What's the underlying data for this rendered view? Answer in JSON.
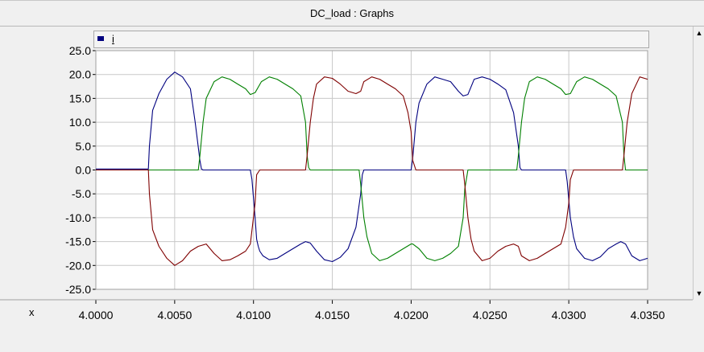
{
  "window": {
    "title": "DC_load : Graphs"
  },
  "legend": {
    "label": "i",
    "color": "#00007f"
  },
  "chart_data": {
    "type": "line",
    "title": "DC_load : Graphs",
    "xlabel": "x",
    "ylabel": "",
    "xlim": [
      4.0,
      4.035
    ],
    "ylim": [
      -25.0,
      25.0
    ],
    "xticks": [
      "4.0000",
      "4.0050",
      "4.0100",
      "4.0150",
      "4.0200",
      "4.0250",
      "4.0300",
      "4.0350"
    ],
    "yticks": [
      "25.0",
      "20.0",
      "15.0",
      "10.0",
      "5.0",
      "0.0",
      "-5.0",
      "-10.0",
      "-15.0",
      "-20.0",
      "-25.0"
    ],
    "grid": true,
    "legend_position": "top-left",
    "series": [
      {
        "color": "#00007f",
        "x": [
          4.0,
          4.00333,
          4.0034,
          4.0036,
          4.004,
          4.0045,
          4.005,
          4.0055,
          4.006,
          4.0063,
          4.0066,
          4.0067,
          4.0068,
          4.0098,
          4.0099,
          4.0101,
          4.0102,
          4.0103,
          4.0104,
          4.0106,
          4.011,
          4.0115,
          4.012,
          4.0125,
          4.013,
          4.0133,
          4.0136,
          4.014,
          4.0145,
          4.015,
          4.0155,
          4.016,
          4.0165,
          4.0168,
          4.0169,
          4.017,
          4.0175,
          4.02,
          4.0201,
          4.0203,
          4.0205,
          4.021,
          4.0215,
          4.022,
          4.0225,
          4.023,
          4.0233,
          4.0236,
          4.024,
          4.0245,
          4.025,
          4.0255,
          4.026,
          4.0265,
          4.0268,
          4.0269,
          4.027,
          4.0298,
          4.0299,
          4.0301,
          4.0303,
          4.0305,
          4.031,
          4.0315,
          4.032,
          4.0325,
          4.033,
          4.0333,
          4.0336,
          4.034,
          4.0345,
          4.035
        ],
        "y": [
          0.2,
          0.2,
          5.0,
          12.5,
          16.0,
          19.0,
          20.5,
          19.5,
          17.0,
          10.0,
          2.0,
          0.2,
          0.0,
          0.0,
          -2.0,
          -10.0,
          -14.5,
          -16.0,
          -17.0,
          -18.0,
          -18.8,
          -18.5,
          -17.5,
          -16.5,
          -15.5,
          -15.0,
          -15.3,
          -17.0,
          -18.8,
          -19.2,
          -18.3,
          -16.5,
          -12.0,
          -5.0,
          -1.0,
          0.0,
          0.0,
          0.0,
          2.5,
          10.0,
          14.0,
          18.0,
          19.5,
          19.0,
          18.5,
          16.5,
          15.5,
          15.8,
          19.0,
          19.5,
          19.0,
          18.0,
          16.8,
          12.0,
          5.0,
          0.5,
          0.0,
          0.0,
          -2.5,
          -10.0,
          -14.0,
          -16.5,
          -18.5,
          -19.0,
          -18.2,
          -16.5,
          -15.5,
          -15.0,
          -15.5,
          -18.0,
          -19.0,
          -18.5
        ]
      },
      {
        "color": "#008000",
        "x": [
          4.0,
          4.0065,
          4.0066,
          4.0068,
          4.007,
          4.0075,
          4.008,
          4.0085,
          4.009,
          4.0095,
          4.0098,
          4.0101,
          4.0105,
          4.011,
          4.0115,
          4.012,
          4.0125,
          4.013,
          4.0133,
          4.0134,
          4.0135,
          4.0136,
          4.0167,
          4.0168,
          4.017,
          4.0172,
          4.0175,
          4.018,
          4.0185,
          4.019,
          4.0195,
          4.02,
          4.0201,
          4.0205,
          4.021,
          4.0215,
          4.022,
          4.0225,
          4.023,
          4.0233,
          4.0234,
          4.0236,
          4.0267,
          4.0268,
          4.027,
          4.0272,
          4.0275,
          4.028,
          4.0285,
          4.029,
          4.0295,
          4.0298,
          4.0301,
          4.0305,
          4.031,
          4.0315,
          4.032,
          4.0325,
          4.033,
          4.0334,
          4.0335,
          4.0336,
          4.035
        ],
        "y": [
          0.0,
          0.0,
          3.0,
          10.0,
          15.0,
          18.5,
          19.5,
          19.0,
          18.0,
          17.0,
          15.8,
          16.2,
          18.5,
          19.5,
          19.0,
          18.0,
          17.0,
          15.5,
          10.0,
          3.0,
          0.5,
          0.0,
          0.0,
          -3.0,
          -10.0,
          -14.0,
          -17.5,
          -19.0,
          -18.5,
          -17.5,
          -16.5,
          -15.5,
          -15.5,
          -16.5,
          -18.5,
          -19.0,
          -18.5,
          -17.5,
          -16.0,
          -10.0,
          -4.0,
          0.0,
          0.0,
          3.0,
          10.0,
          15.0,
          18.5,
          19.5,
          19.0,
          18.0,
          17.0,
          15.8,
          16.0,
          18.5,
          19.5,
          19.0,
          18.0,
          17.0,
          15.5,
          10.0,
          3.0,
          0.0,
          0.0
        ]
      },
      {
        "color": "#7f0000",
        "x": [
          4.0,
          4.00333,
          4.0034,
          4.0036,
          4.004,
          4.0045,
          4.005,
          4.0055,
          4.006,
          4.0065,
          4.007,
          4.0075,
          4.008,
          4.0085,
          4.009,
          4.0095,
          4.0098,
          4.0101,
          4.0102,
          4.0104,
          4.0133,
          4.0134,
          4.0136,
          4.0138,
          4.014,
          4.0145,
          4.015,
          4.0155,
          4.016,
          4.0165,
          4.0168,
          4.017,
          4.0175,
          4.018,
          4.0185,
          4.019,
          4.0195,
          4.0198,
          4.02,
          4.0201,
          4.0203,
          4.0233,
          4.0234,
          4.0236,
          4.0238,
          4.024,
          4.0245,
          4.025,
          4.0255,
          4.026,
          4.0265,
          4.0268,
          4.027,
          4.0275,
          4.028,
          4.0285,
          4.029,
          4.0295,
          4.0298,
          4.03,
          4.0301,
          4.0303,
          4.0334,
          4.0335,
          4.0337,
          4.034,
          4.0345,
          4.035
        ],
        "y": [
          0.0,
          0.0,
          -5.0,
          -12.5,
          -16.0,
          -18.5,
          -20.0,
          -19.0,
          -17.0,
          -16.0,
          -15.5,
          -17.5,
          -19.0,
          -18.8,
          -18.0,
          -17.0,
          -15.5,
          -7.0,
          -1.0,
          0.0,
          0.0,
          3.0,
          10.0,
          15.0,
          18.0,
          19.5,
          19.2,
          18.0,
          16.5,
          16.0,
          16.5,
          18.5,
          19.5,
          19.0,
          18.0,
          17.0,
          15.5,
          12.0,
          8.0,
          2.0,
          0.0,
          0.0,
          -3.0,
          -10.0,
          -14.5,
          -17.0,
          -19.0,
          -18.5,
          -17.0,
          -16.0,
          -15.5,
          -16.0,
          -18.0,
          -19.0,
          -18.5,
          -17.5,
          -16.5,
          -15.5,
          -12.0,
          -7.0,
          -2.0,
          0.0,
          0.0,
          3.0,
          10.0,
          16.0,
          19.5,
          19.0
        ]
      }
    ]
  }
}
